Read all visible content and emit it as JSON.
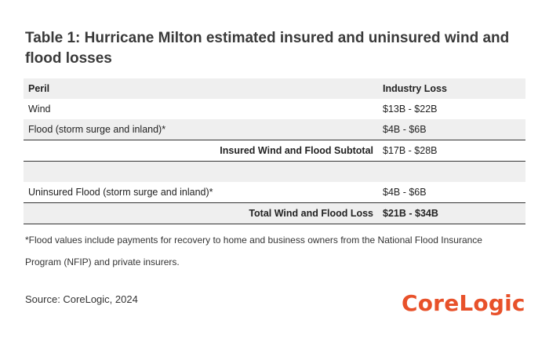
{
  "title": "Table 1: Hurricane Milton estimated insured and uninsured wind and flood losses",
  "table": {
    "headers": {
      "peril": "Peril",
      "loss": "Industry Loss"
    },
    "rows": [
      {
        "peril": "Wind",
        "loss": "$13B - $22B"
      },
      {
        "peril": "Flood (storm surge and inland)*",
        "loss": "$4B - $6B"
      },
      {
        "peril": "Insured Wind and Flood Subtotal",
        "loss": "$17B - $28B"
      },
      {
        "peril": "",
        "loss": ""
      },
      {
        "peril": "Uninsured Flood (storm surge and inland)*",
        "loss": "$4B - $6B"
      },
      {
        "peril": "Total Wind and Flood Loss",
        "loss": "$21B - $34B"
      }
    ]
  },
  "footnote": "*Flood values include payments for recovery to home and business owners from the National Flood Insurance Program (NFIP) and private insurers.",
  "source": "Source: CoreLogic, 2024",
  "logo_text": "CoreLogic",
  "colors": {
    "brand": "#e8512a",
    "row_shade": "#efefef"
  }
}
